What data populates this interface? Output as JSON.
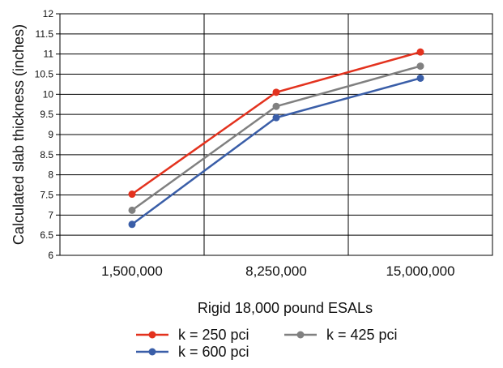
{
  "chart_data": {
    "type": "line",
    "title": "",
    "xlabel": "Rigid 18,000 pound ESALs",
    "ylabel": "Calculated slab thickness (inches)",
    "categories": [
      "1,500,000",
      "8,250,000",
      "15,000,000"
    ],
    "ylim": [
      6,
      12
    ],
    "yticks": [
      "6",
      "6.5",
      "7",
      "7.5",
      "8",
      "8.5",
      "9",
      "9.5",
      "10",
      "10.5",
      "11",
      "11.5",
      "12"
    ],
    "grid": true,
    "legend_position": "bottom",
    "series": [
      {
        "name": "k = 250 pci",
        "color": "#e3321e",
        "values": [
          7.52,
          10.05,
          11.05
        ]
      },
      {
        "name": "k = 425 pci",
        "color": "#808080",
        "values": [
          7.12,
          9.7,
          10.7
        ]
      },
      {
        "name": "k = 600 pci",
        "color": "#3a5ea8",
        "values": [
          6.77,
          9.42,
          10.4
        ]
      }
    ]
  }
}
